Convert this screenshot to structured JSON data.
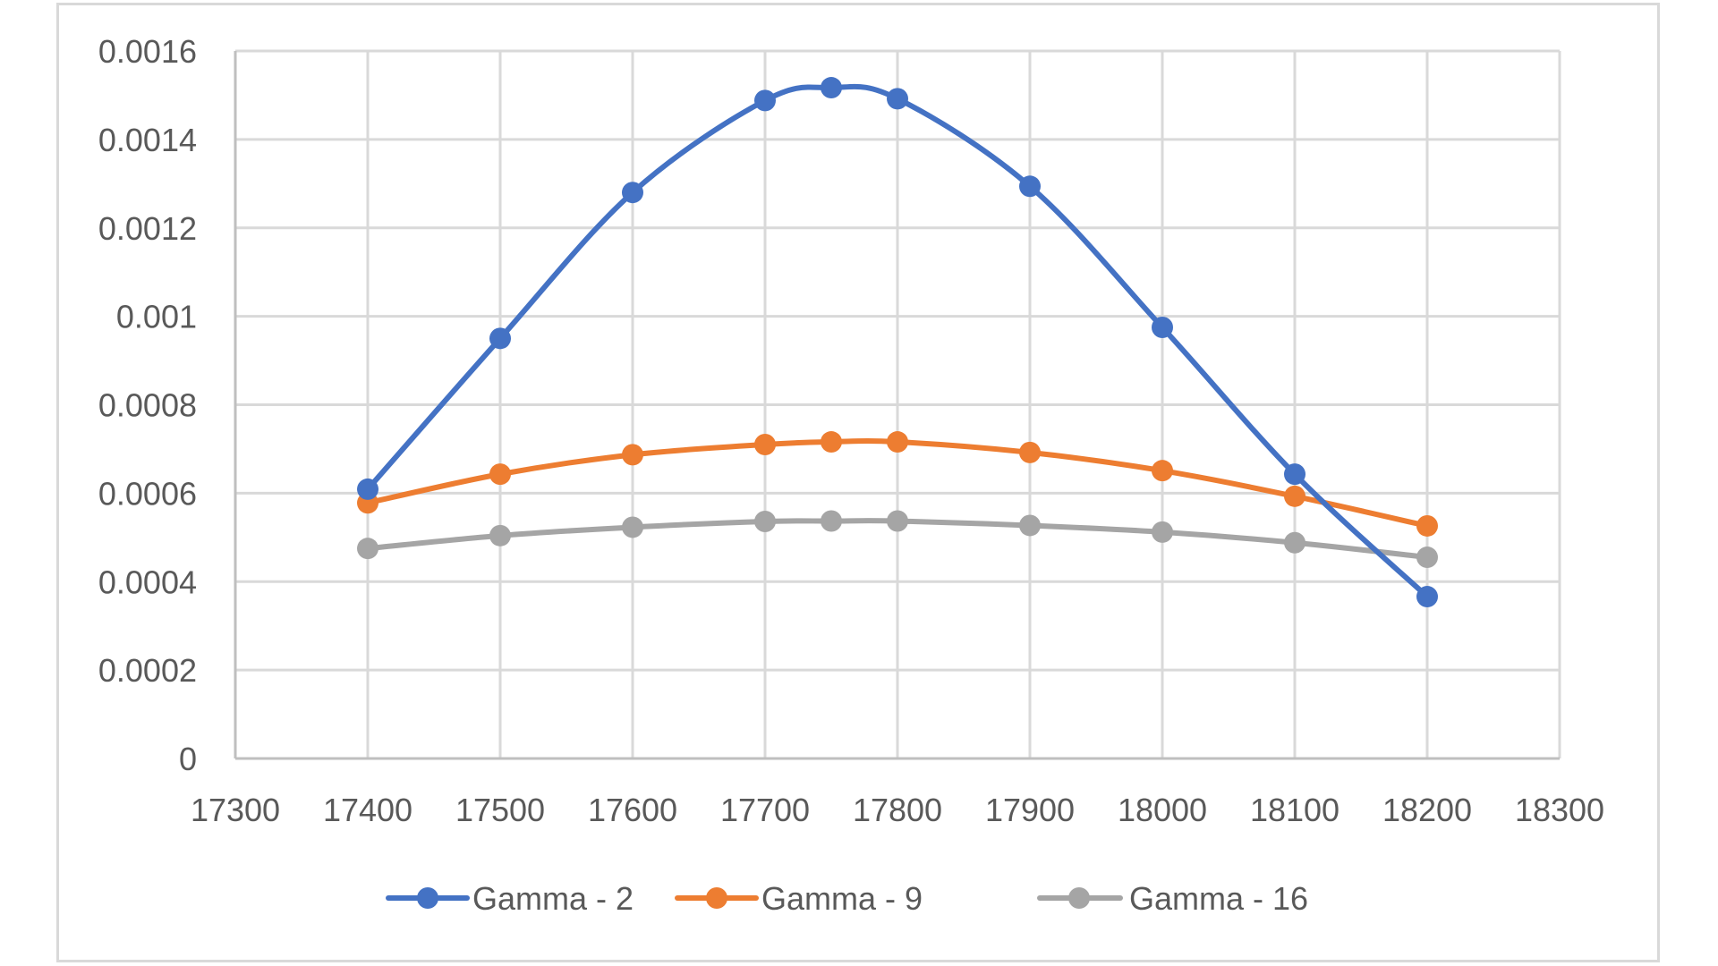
{
  "chart_data": {
    "type": "line",
    "title": "",
    "xlabel": "",
    "ylabel": "",
    "xlim": [
      17300,
      18300
    ],
    "ylim": [
      0,
      0.0016
    ],
    "x_ticks": [
      "17300",
      "17400",
      "17500",
      "17600",
      "17700",
      "17800",
      "17900",
      "18000",
      "18100",
      "18200",
      "18300"
    ],
    "y_ticks": [
      "0",
      "0.0002",
      "0.0004",
      "0.0006",
      "0.0008",
      "0.001",
      "0.0012",
      "0.0014",
      "0.0016"
    ],
    "grid": true,
    "smooth": true,
    "legend_position": "bottom",
    "x": [
      17400,
      17500,
      17600,
      17700,
      17750,
      17800,
      17900,
      18000,
      18100,
      18200
    ],
    "series": [
      {
        "name": "Gamma - 2",
        "color": "#4472C4",
        "values": [
          0.000609,
          0.00095,
          0.00128,
          0.001488,
          0.001517,
          0.001492,
          0.001294,
          0.000975,
          0.000643,
          0.000366
        ]
      },
      {
        "name": "Gamma - 9",
        "color": "#ED7D31",
        "values": [
          0.000578,
          0.000643,
          0.000687,
          0.00071,
          0.000716,
          0.000716,
          0.000692,
          0.000651,
          0.000593,
          0.000526
        ]
      },
      {
        "name": "Gamma - 16",
        "color": "#A5A5A5",
        "values": [
          0.000475,
          0.000504,
          0.000523,
          0.000536,
          0.000537,
          0.000537,
          0.000527,
          0.000512,
          0.000488,
          0.000455
        ]
      }
    ]
  },
  "legend": {
    "items": [
      {
        "label": "Gamma - 2",
        "color": "#4472C4"
      },
      {
        "label": "Gamma - 9",
        "color": "#ED7D31"
      },
      {
        "label": "Gamma - 16",
        "color": "#A5A5A5"
      }
    ]
  }
}
